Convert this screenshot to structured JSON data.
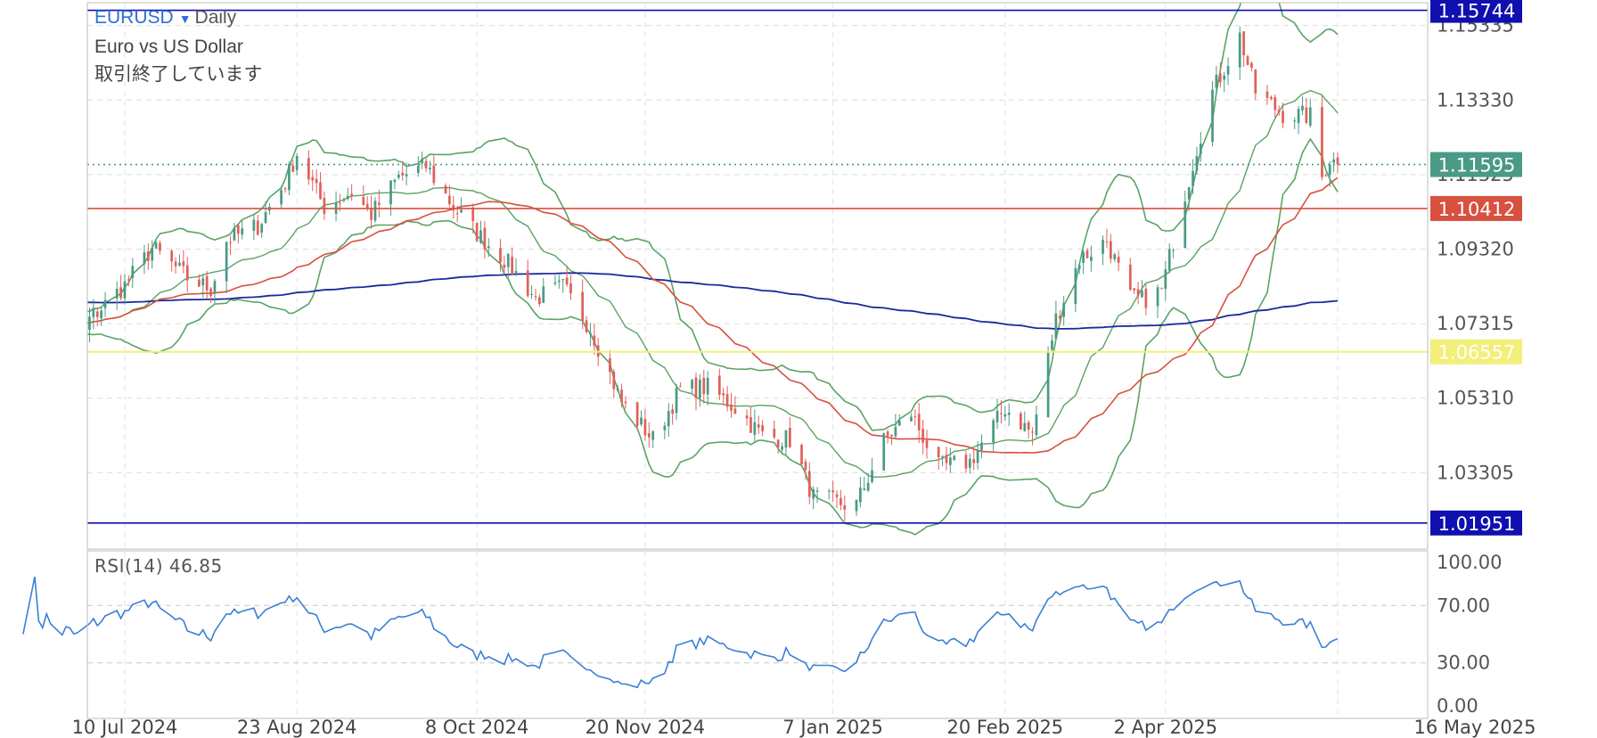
{
  "header": {
    "symbol": "EURUSD",
    "period": "Daily",
    "description": "Euro vs US Dollar",
    "status": "取引終了しています"
  },
  "rsi_label": "RSI(14)",
  "rsi_value": "46.85",
  "colors": {
    "bull": "#4a9a86",
    "bear": "#e0605a",
    "bollinger": "#5aa364",
    "ma_fast": "#d8503f",
    "ma_slow": "#1a2a9a",
    "line_blue": "#1010b0",
    "line_red": "#d8503f",
    "line_yellow": "#f2ef7a",
    "last_price": "#4a9a86",
    "rsi_line": "#3a7fd6"
  },
  "chart_data": [
    {
      "type": "candlestick",
      "title": "EURUSD Daily",
      "y_axis_ticks": [
        "1.15335",
        "1.13330",
        "1.11325",
        "1.09320",
        "1.07315",
        "1.05310",
        "1.03305"
      ],
      "ylim": [
        1.0125,
        1.1595
      ],
      "x_axis_ticks": [
        "10 Jul 2024",
        "23 Aug 2024",
        "8 Oct 2024",
        "20 Nov 2024",
        "7 Jan 2025",
        "20 Feb 2025",
        "2 Apr 2025",
        "16 May 2025"
      ],
      "horizontal_lines": [
        {
          "label": "1.15744",
          "value": 1.15744,
          "color": "#1010b0"
        },
        {
          "label": "1.10412",
          "value": 1.10412,
          "color": "#d8503f"
        },
        {
          "label": "1.06557",
          "value": 1.06557,
          "color": "#f2ef7a"
        },
        {
          "label": "1.01951",
          "value": 1.01951,
          "color": "#1010b0"
        },
        {
          "label": "1.11595",
          "value": 1.11595,
          "color": "#4a9a86",
          "style": "dotted",
          "kind": "last_price"
        }
      ],
      "close_anchors": [
        [
          "2024-06-18",
          1.0745
        ],
        [
          "2024-06-28",
          1.0712
        ],
        [
          "2024-07-10",
          1.0835
        ],
        [
          "2024-07-17",
          1.0935
        ],
        [
          "2024-07-26",
          1.0855
        ],
        [
          "2024-08-01",
          1.0825
        ],
        [
          "2024-08-05",
          1.0955
        ],
        [
          "2024-08-13",
          1.0995
        ],
        [
          "2024-08-20",
          1.1112
        ],
        [
          "2024-08-23",
          1.119
        ],
        [
          "2024-08-30",
          1.1045
        ],
        [
          "2024-09-06",
          1.1085
        ],
        [
          "2024-09-11",
          1.1025
        ],
        [
          "2024-09-18",
          1.1125
        ],
        [
          "2024-09-25",
          1.1155
        ],
        [
          "2024-10-02",
          1.1045
        ],
        [
          "2024-10-08",
          1.0975
        ],
        [
          "2024-10-15",
          1.0905
        ],
        [
          "2024-10-23",
          1.08
        ],
        [
          "2024-10-30",
          1.083
        ],
        [
          "2024-11-06",
          1.072
        ],
        [
          "2024-11-14",
          1.052
        ],
        [
          "2024-11-22",
          1.042
        ],
        [
          "2024-11-29",
          1.0555
        ],
        [
          "2024-12-06",
          1.056
        ],
        [
          "2024-12-13",
          1.0505
        ],
        [
          "2024-12-20",
          1.043
        ],
        [
          "2024-12-27",
          1.042
        ],
        [
          "2025-01-02",
          1.0265
        ],
        [
          "2025-01-10",
          1.0245
        ],
        [
          "2025-01-13",
          1.0245
        ],
        [
          "2025-01-20",
          1.0415
        ],
        [
          "2025-01-27",
          1.049
        ],
        [
          "2025-02-03",
          1.0345
        ],
        [
          "2025-02-11",
          1.036
        ],
        [
          "2025-02-20",
          1.0505
        ],
        [
          "2025-02-27",
          1.0435
        ],
        [
          "2025-03-05",
          1.0745
        ],
        [
          "2025-03-11",
          1.0905
        ],
        [
          "2025-03-18",
          1.0955
        ],
        [
          "2025-03-24",
          1.08
        ],
        [
          "2025-03-27",
          1.0795
        ],
        [
          "2025-04-01",
          1.082
        ],
        [
          "2025-04-04",
          1.0955
        ],
        [
          "2025-04-10",
          1.1205
        ],
        [
          "2025-04-14",
          1.1355
        ],
        [
          "2025-04-21",
          1.1505
        ],
        [
          "2025-04-25",
          1.1355
        ],
        [
          "2025-05-02",
          1.1295
        ],
        [
          "2025-05-09",
          1.129
        ],
        [
          "2025-05-12",
          1.1125
        ],
        [
          "2025-05-14",
          1.1175
        ],
        [
          "2025-05-16",
          1.116
        ]
      ],
      "series": [
        {
          "name": "Moving average (fast)",
          "color": "#d8503f"
        },
        {
          "name": "Moving average (slow)",
          "color": "#1a2a9a"
        },
        {
          "name": "Bollinger bands",
          "color": "#5aa364"
        }
      ]
    },
    {
      "type": "line",
      "title": "RSI(14) 46.85",
      "y_axis_ticks": [
        "100.00",
        "70.00",
        "30.00",
        "0.00"
      ],
      "ylim": [
        0,
        100
      ],
      "reference_lines": [
        70,
        30
      ],
      "color": "#3a7fd6"
    }
  ]
}
